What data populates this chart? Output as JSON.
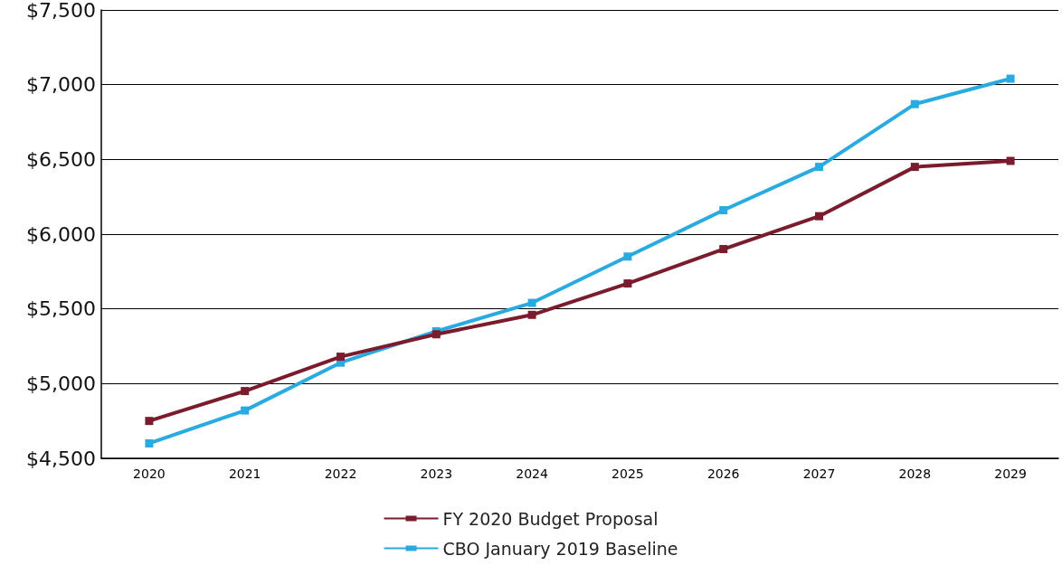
{
  "chart_data": {
    "type": "line",
    "categories": [
      "2020",
      "2021",
      "2022",
      "2023",
      "2024",
      "2025",
      "2026",
      "2027",
      "2028",
      "2029"
    ],
    "series": [
      {
        "name": "FY 2020 Budget Proposal",
        "color": "#7b1c2e",
        "values": [
          4750,
          4950,
          5180,
          5330,
          5460,
          5670,
          5900,
          6120,
          6450,
          6490
        ]
      },
      {
        "name": "CBO January 2019 Baseline",
        "color": "#29abe2",
        "values": [
          4600,
          4820,
          5140,
          5350,
          5540,
          5850,
          6160,
          6450,
          6870,
          7040
        ]
      }
    ],
    "ylim": [
      4500,
      7500
    ],
    "yticks": [
      {
        "value": 4500,
        "label": "$4,500"
      },
      {
        "value": 5000,
        "label": "$5,000"
      },
      {
        "value": 5500,
        "label": "$5,500"
      },
      {
        "value": 6000,
        "label": "$6,000"
      },
      {
        "value": 6500,
        "label": "$6,500"
      },
      {
        "value": 7000,
        "label": "$7,000"
      },
      {
        "value": 7500,
        "label": "$7,500"
      }
    ],
    "grid": "y",
    "legend": "bottom",
    "marker": "square",
    "line_style": "solid"
  }
}
